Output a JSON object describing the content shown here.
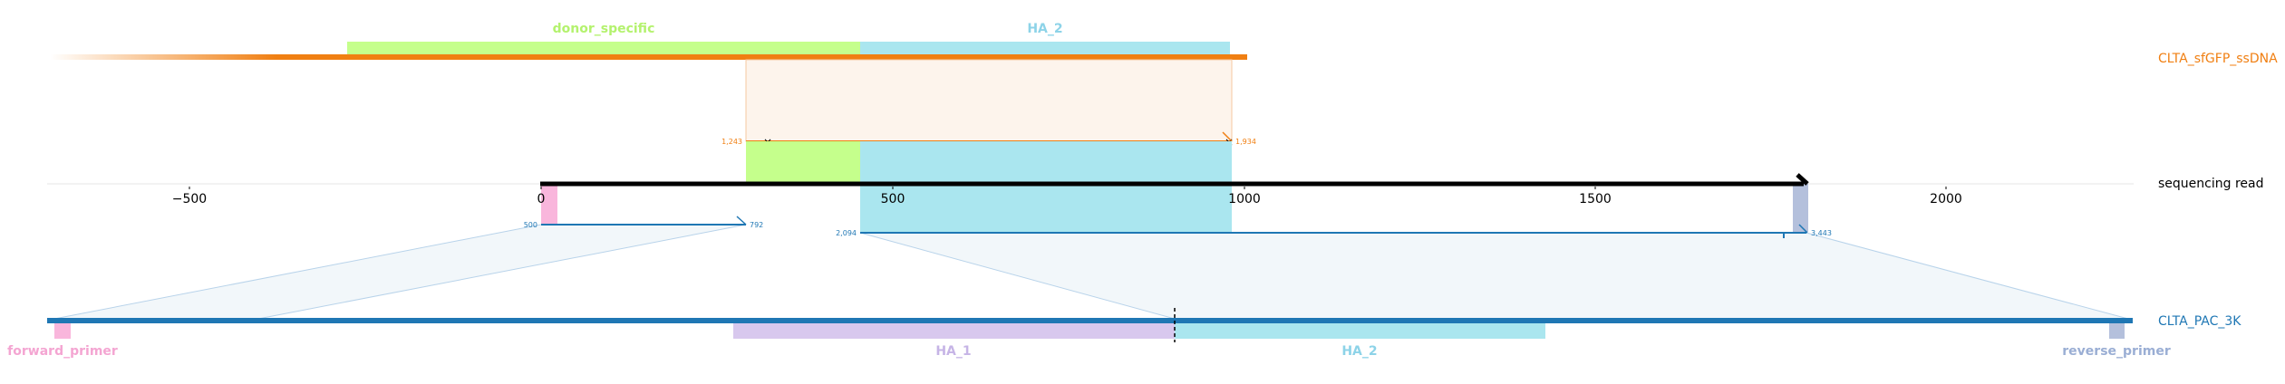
{
  "diagram": {
    "axis": {
      "ticks": [
        {
          "value": -500,
          "label": "−500"
        },
        {
          "value": 0,
          "label": "0"
        },
        {
          "value": 500,
          "label": "500"
        },
        {
          "value": 1000,
          "label": "1000"
        },
        {
          "value": 1500,
          "label": "1500"
        },
        {
          "value": 2000,
          "label": "2000"
        }
      ]
    },
    "tracks": {
      "donor": {
        "label": "CLTA_sfGFP_ssDNA",
        "color": "#f07f12"
      },
      "read": {
        "label": "sequencing read",
        "color": "#000000"
      },
      "reference": {
        "label": "CLTA_PAC_3K",
        "color": "#1f77b4"
      }
    },
    "donor_features": [
      {
        "name": "donor_specific",
        "label": "donor_specific",
        "color": "#c5ff8c",
        "text_color": "#b4f26e"
      },
      {
        "name": "HA_2",
        "label": "HA_2",
        "color": "#aae6ef",
        "text_color": "#8dd3e8"
      }
    ],
    "reference_features": [
      {
        "name": "forward_primer",
        "label": "forward_primer",
        "color": "#f9b6dc",
        "text_color": "#f4a5d2"
      },
      {
        "name": "HA_1",
        "label": "HA_1",
        "color": "#d8c8ee",
        "text_color": "#c6b4e6"
      },
      {
        "name": "HA_2",
        "label": "HA_2",
        "color": "#aae6ef",
        "text_color": "#8dd3e8"
      },
      {
        "name": "reverse_primer",
        "label": "reverse_primer",
        "color": "#b4c0dc",
        "text_color": "#9aaed4"
      }
    ],
    "donor_alignment": {
      "query_start_label": "1,243",
      "query_end_label": "1,934"
    },
    "ref_alignment_1": {
      "start_label": "500",
      "end_label": "792"
    },
    "ref_alignment_2": {
      "start_label": "2,094",
      "end_label": "3,443"
    }
  }
}
